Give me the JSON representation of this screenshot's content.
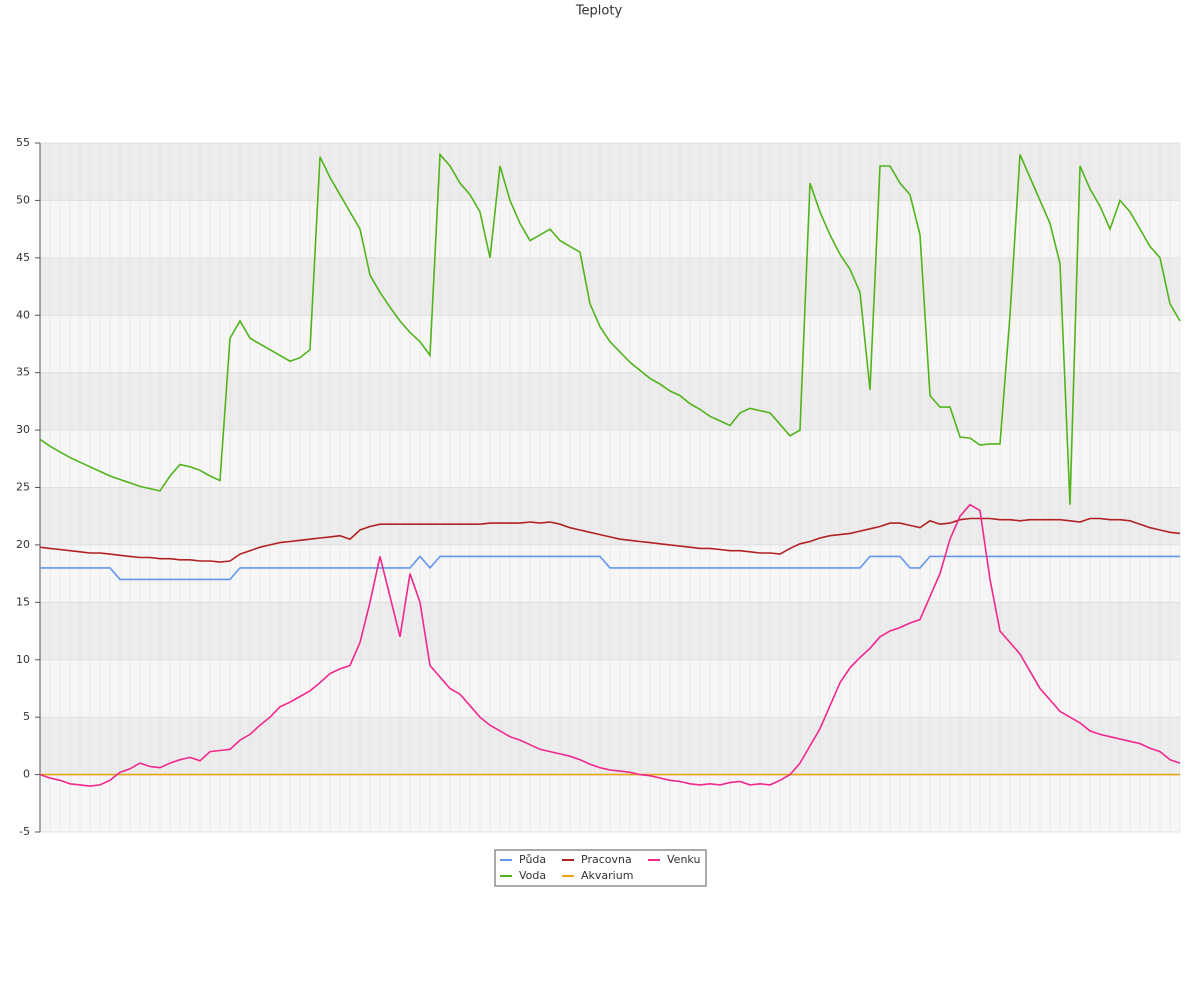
{
  "chart_data": {
    "type": "line",
    "title": "Teploty",
    "ylim": [
      -5,
      55
    ],
    "yticks": [
      -5,
      0,
      5,
      10,
      15,
      20,
      25,
      30,
      35,
      40,
      45,
      50,
      55
    ],
    "grid": true,
    "series": [
      {
        "name": "Půda",
        "color": "#6495ed",
        "values": [
          18,
          18,
          18,
          18,
          18,
          18,
          18,
          18,
          17,
          17,
          17,
          17,
          17,
          17,
          17,
          17,
          17,
          17,
          17,
          17,
          18,
          18,
          18,
          18,
          18,
          18,
          18,
          18,
          18,
          18,
          18,
          18,
          18,
          18,
          18,
          18,
          18,
          18,
          19,
          18,
          19,
          19,
          19,
          19,
          19,
          19,
          19,
          19,
          19,
          19,
          19,
          19,
          19,
          19,
          19,
          19,
          19,
          18,
          18,
          18,
          18,
          18,
          18,
          18,
          18,
          18,
          18,
          18,
          18,
          18,
          18,
          18,
          18,
          18,
          18,
          18,
          18,
          18,
          18,
          18,
          18,
          18,
          18,
          19,
          19,
          19,
          19,
          18,
          18,
          19,
          19,
          19,
          19,
          19,
          19,
          19,
          19,
          19,
          19,
          19,
          19,
          19,
          19,
          19,
          19,
          19,
          19,
          19,
          19,
          19,
          19,
          19,
          19,
          19,
          19
        ]
      },
      {
        "name": "Voda",
        "color": "#52b31c",
        "values": [
          29.2,
          28.6,
          28.1,
          27.6,
          27.2,
          26.8,
          26.4,
          26.0,
          25.7,
          25.4,
          25.1,
          24.9,
          24.7,
          26.0,
          27.0,
          26.8,
          26.5,
          26.0,
          25.6,
          38,
          39.5,
          38,
          37.5,
          37,
          36.5,
          36,
          36.3,
          37,
          53.8,
          52,
          50.5,
          49,
          47.5,
          43.5,
          42,
          40.7,
          39.5,
          38.5,
          37.7,
          36.5,
          54,
          53,
          51.5,
          50.5,
          49,
          45,
          53,
          50,
          48,
          46.5,
          47,
          47.5,
          46.5,
          46,
          45.5,
          41,
          39,
          37.7,
          36.8,
          35.9,
          35.2,
          34.5,
          34,
          33.4,
          33,
          32.3,
          31.8,
          31.2,
          30.8,
          30.4,
          31.5,
          31.9,
          31.7,
          31.5,
          30.5,
          29.5,
          30,
          51.5,
          49,
          47,
          45.3,
          44,
          42,
          33.5,
          53,
          53,
          51.5,
          50.5,
          47,
          33,
          32,
          32,
          29.4,
          29.3,
          28.7,
          28.8,
          28.8,
          40,
          54,
          52,
          50,
          48,
          44.5,
          23.5,
          53,
          51,
          49.5,
          47.5,
          50,
          49,
          47.5,
          46,
          45,
          41,
          39.5
        ]
      },
      {
        "name": "Pracovna",
        "color": "#b22222",
        "values": [
          19.8,
          19.7,
          19.6,
          19.5,
          19.4,
          19.3,
          19.3,
          19.2,
          19.1,
          19.0,
          18.9,
          18.9,
          18.8,
          18.8,
          18.7,
          18.7,
          18.6,
          18.6,
          18.5,
          18.6,
          19.2,
          19.5,
          19.8,
          20.0,
          20.2,
          20.3,
          20.4,
          20.5,
          20.6,
          20.7,
          20.8,
          20.5,
          21.3,
          21.6,
          21.8,
          21.8,
          21.8,
          21.8,
          21.8,
          21.8,
          21.8,
          21.8,
          21.8,
          21.8,
          21.8,
          21.9,
          21.9,
          21.9,
          21.9,
          22.0,
          21.9,
          22.0,
          21.8,
          21.5,
          21.3,
          21.1,
          20.9,
          20.7,
          20.5,
          20.4,
          20.3,
          20.2,
          20.1,
          20.0,
          19.9,
          19.8,
          19.7,
          19.7,
          19.6,
          19.5,
          19.5,
          19.4,
          19.3,
          19.3,
          19.2,
          19.7,
          20.1,
          20.3,
          20.6,
          20.8,
          20.9,
          21.0,
          21.2,
          21.4,
          21.6,
          21.9,
          21.9,
          21.7,
          21.5,
          22.1,
          21.8,
          21.9,
          22.2,
          22.3,
          22.3,
          22.3,
          22.2,
          22.2,
          22.1,
          22.2,
          22.2,
          22.2,
          22.2,
          22.1,
          22.0,
          22.3,
          22.3,
          22.2,
          22.2,
          22.1,
          21.8,
          21.5,
          21.3,
          21.1,
          21.0
        ]
      },
      {
        "name": "Akvarium",
        "color": "#e8a317",
        "values": [
          0,
          0,
          0,
          0,
          0,
          0,
          0,
          0,
          0,
          0,
          0,
          0,
          0,
          0,
          0,
          0,
          0,
          0,
          0,
          0,
          0,
          0,
          0,
          0,
          0,
          0,
          0,
          0,
          0,
          0,
          0,
          0,
          0,
          0,
          0,
          0,
          0,
          0,
          0,
          0,
          0,
          0,
          0,
          0,
          0,
          0,
          0,
          0,
          0,
          0,
          0,
          0,
          0,
          0,
          0,
          0,
          0,
          0,
          0,
          0,
          0,
          0,
          0,
          0,
          0,
          0,
          0,
          0,
          0,
          0,
          0,
          0,
          0,
          0,
          0,
          0,
          0,
          0,
          0,
          0,
          0,
          0,
          0,
          0,
          0,
          0,
          0,
          0,
          0,
          0,
          0,
          0,
          0,
          0,
          0,
          0,
          0,
          0,
          0,
          0,
          0,
          0,
          0,
          0,
          0,
          0,
          0,
          0,
          0,
          0,
          0,
          0,
          0,
          0,
          0
        ]
      },
      {
        "name": "Venku",
        "color": "#f0288c",
        "values": [
          0,
          -0.3,
          -0.5,
          -0.8,
          -0.9,
          -1.0,
          -0.9,
          -0.5,
          0.2,
          0.5,
          1.0,
          0.7,
          0.6,
          1.0,
          1.3,
          1.5,
          1.2,
          2.0,
          2.1,
          2.2,
          3.0,
          3.5,
          4.3,
          5.0,
          5.9,
          6.3,
          6.8,
          7.3,
          8.0,
          8.8,
          9.2,
          9.5,
          11.5,
          15.0,
          19.0,
          15.5,
          12,
          17.5,
          15,
          9.5,
          8.5,
          7.5,
          7.0,
          6.0,
          5.0,
          4.3,
          3.8,
          3.3,
          3.0,
          2.6,
          2.2,
          2.0,
          1.8,
          1.6,
          1.3,
          0.9,
          0.6,
          0.4,
          0.3,
          0.2,
          0.0,
          -0.1,
          -0.3,
          -0.5,
          -0.6,
          -0.8,
          -0.9,
          -0.8,
          -0.9,
          -0.7,
          -0.6,
          -0.9,
          -0.8,
          -0.9,
          -0.5,
          0.0,
          1.0,
          2.5,
          4.0,
          6.0,
          8.0,
          9.3,
          10.2,
          11.0,
          12.0,
          12.5,
          12.8,
          13.2,
          13.5,
          15.5,
          17.5,
          20.5,
          22.5,
          23.5,
          23.0,
          17,
          12.5,
          11.5,
          10.5,
          9.0,
          7.5,
          6.5,
          5.5,
          5.0,
          4.5,
          3.8,
          3.5,
          3.3,
          3.1,
          2.9,
          2.7,
          2.3,
          2.0,
          1.3,
          1.0
        ]
      }
    ]
  }
}
